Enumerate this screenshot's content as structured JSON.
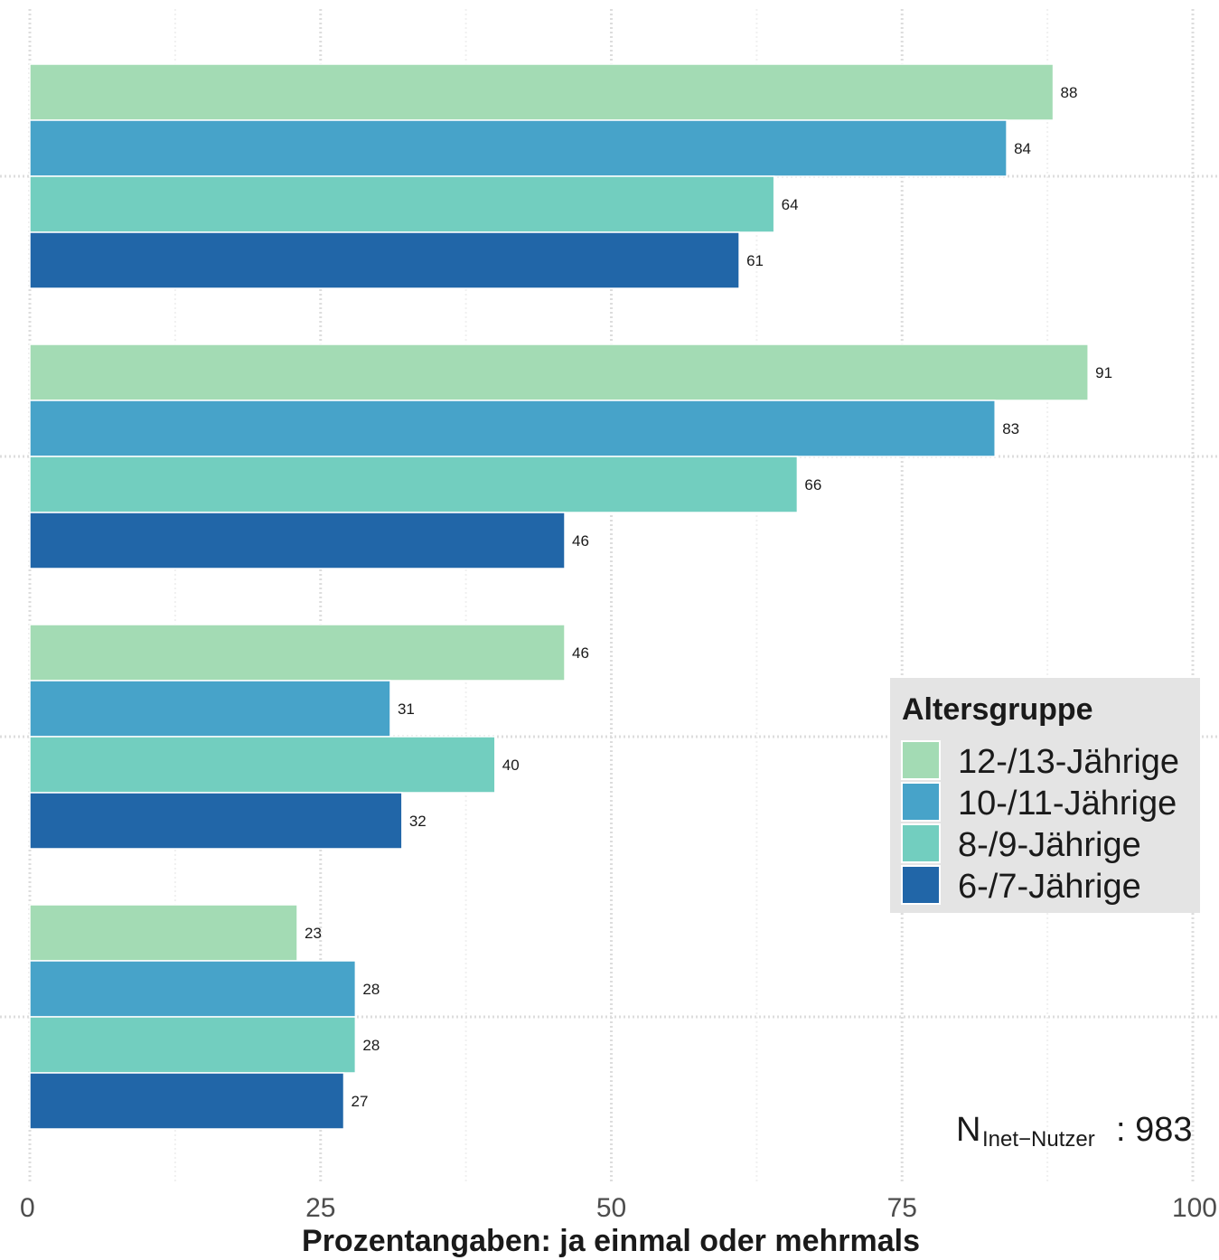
{
  "chart_data": {
    "type": "bar",
    "orientation": "horizontal",
    "xlabel": "Prozentangaben: ja einmal oder mehrmals",
    "xlim": [
      0,
      100
    ],
    "x_ticks": [
      "0",
      "25",
      "50",
      "75",
      "100"
    ],
    "grid": true,
    "groups": 4,
    "series": [
      {
        "name": "12-/13-Jährige",
        "color": "#a3dbb4",
        "values": [
          88,
          91,
          46,
          23
        ]
      },
      {
        "name": "10-/11-Jährige",
        "color": "#47a3c9",
        "values": [
          84,
          83,
          31,
          28
        ]
      },
      {
        "name": "8-/9-Jährige",
        "color": "#72cebf",
        "values": [
          64,
          66,
          40,
          28
        ]
      },
      {
        "name": "6-/7-Jährige",
        "color": "#2166a8",
        "values": [
          61,
          46,
          32,
          27
        ]
      }
    ],
    "legend": {
      "title": "Altersgruppe",
      "placement": "right"
    },
    "note": {
      "main": "N",
      "sub": "Inet−Nutzer",
      "value": ": 983"
    }
  }
}
